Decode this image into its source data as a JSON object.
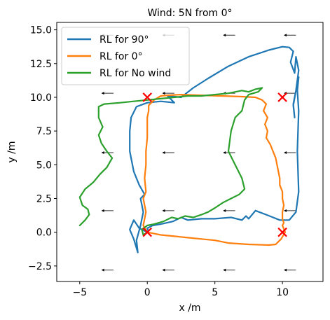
{
  "chart_data": {
    "type": "line",
    "title": "Wind: 5N from 0°",
    "xlabel": "x /m",
    "ylabel": "y /m",
    "xlim": [
      -6.7,
      13.0
    ],
    "ylim": [
      -3.65,
      15.55
    ],
    "xticks": [
      -5,
      0,
      5,
      10
    ],
    "xtick_labels": [
      "−5",
      "0",
      "5",
      "10"
    ],
    "yticks": [
      -2.5,
      0.0,
      2.5,
      5.0,
      7.5,
      10.0,
      12.5,
      15.0
    ],
    "ytick_labels": [
      "−2.5",
      "0.0",
      "2.5",
      "5.0",
      "7.5",
      "10.0",
      "12.5",
      "15.0"
    ],
    "grid": false,
    "legend_position": "upper-left",
    "series": [
      {
        "name": "RL for 90°",
        "color": "#1f77b4",
        "points": [
          [
            0,
            0
          ],
          [
            -0.6,
            0.3
          ],
          [
            -1.0,
            0.9
          ],
          [
            -1.3,
            0.2
          ],
          [
            -1.0,
            -0.5
          ],
          [
            -0.7,
            -1.5
          ],
          [
            -0.8,
            -0.6
          ],
          [
            -0.5,
            0.5
          ],
          [
            -0.3,
            1.5
          ],
          [
            -0.5,
            2.5
          ],
          [
            -0.2,
            2.8
          ],
          [
            -0.6,
            3.5
          ],
          [
            -1.0,
            4.5
          ],
          [
            -1.3,
            6.0
          ],
          [
            -1.3,
            7.5
          ],
          [
            -1.2,
            8.5
          ],
          [
            -0.8,
            9.3
          ],
          [
            0,
            9.6
          ],
          [
            1.0,
            9.7
          ],
          [
            2.0,
            9.6
          ],
          [
            1.5,
            10.1
          ],
          [
            2.5,
            10.0
          ],
          [
            3.4,
            10.7
          ],
          [
            4.5,
            11.4
          ],
          [
            6.0,
            12.3
          ],
          [
            7.5,
            13.0
          ],
          [
            9.0,
            13.5
          ],
          [
            10.0,
            13.75
          ],
          [
            10.5,
            13.7
          ],
          [
            10.8,
            13.4
          ],
          [
            10.6,
            12.6
          ],
          [
            10.9,
            11.8
          ],
          [
            11.0,
            13.0
          ],
          [
            11.2,
            12.0
          ],
          [
            11.0,
            10.5
          ],
          [
            10.8,
            9.4
          ],
          [
            10.9,
            8.5
          ],
          [
            10.8,
            9.5
          ],
          [
            11.0,
            10.5
          ],
          [
            11.2,
            11.5
          ],
          [
            11.1,
            10.5
          ],
          [
            11.2,
            9.0
          ],
          [
            11.1,
            6.0
          ],
          [
            11.2,
            3.0
          ],
          [
            11.0,
            1.5
          ],
          [
            10.5,
            0.9
          ],
          [
            9.8,
            0.9
          ],
          [
            8.8,
            1.3
          ],
          [
            8.0,
            1.6
          ],
          [
            7.5,
            1.0
          ],
          [
            7.3,
            1.2
          ],
          [
            7.0,
            0.9
          ],
          [
            6.2,
            1.1
          ],
          [
            5.0,
            1.0
          ],
          [
            4.0,
            1.0
          ],
          [
            3.0,
            0.9
          ],
          [
            2.5,
            1.1
          ],
          [
            1.9,
            0.8
          ],
          [
            1.0,
            0.6
          ],
          [
            0.4,
            0.5
          ],
          [
            0,
            0.3
          ],
          [
            0.1,
            0
          ],
          [
            0,
            0
          ]
        ]
      },
      {
        "name": "RL for 0°",
        "color": "#ff7f0e",
        "points": [
          [
            0,
            0
          ],
          [
            -0.3,
            0.5
          ],
          [
            -0.2,
            1.0
          ],
          [
            -0.1,
            1.5
          ],
          [
            -0.3,
            2.5
          ],
          [
            -0.1,
            3.0
          ],
          [
            -0.2,
            4.0
          ],
          [
            -0.1,
            5.0
          ],
          [
            -0.1,
            6.0
          ],
          [
            0,
            7.0
          ],
          [
            0,
            8.0
          ],
          [
            0,
            8.5
          ],
          [
            0.1,
            9.0
          ],
          [
            0.1,
            9.4
          ],
          [
            0.3,
            9.6
          ],
          [
            0.5,
            9.8
          ],
          [
            1.0,
            10.1
          ],
          [
            1.5,
            10.15
          ],
          [
            2.5,
            10.2
          ],
          [
            4.0,
            10.15
          ],
          [
            5.5,
            10.1
          ],
          [
            7.0,
            10.05
          ],
          [
            8.0,
            10.0
          ],
          [
            8.5,
            9.8
          ],
          [
            8.8,
            9.5
          ],
          [
            8.6,
            9.0
          ],
          [
            8.9,
            8.5
          ],
          [
            8.7,
            8.0
          ],
          [
            8.9,
            7.5
          ],
          [
            8.8,
            7.0
          ],
          [
            9.1,
            6.5
          ],
          [
            9.3,
            6.0
          ],
          [
            9.5,
            5.5
          ],
          [
            9.6,
            5.0
          ],
          [
            9.7,
            4.5
          ],
          [
            9.8,
            4.0
          ],
          [
            9.8,
            3.5
          ],
          [
            10.0,
            3.0
          ],
          [
            10.0,
            2.5
          ],
          [
            10.1,
            2.0
          ],
          [
            10.0,
            1.5
          ],
          [
            10.0,
            1.0
          ],
          [
            10.1,
            0.7
          ],
          [
            10.0,
            0.5
          ],
          [
            10.2,
            0
          ],
          [
            9.9,
            -0.5
          ],
          [
            9.5,
            -0.9
          ],
          [
            9.0,
            -0.95
          ],
          [
            7.5,
            -0.9
          ],
          [
            6.0,
            -0.8
          ],
          [
            5.0,
            -0.6
          ],
          [
            4.0,
            -0.5
          ],
          [
            3.0,
            -0.4
          ],
          [
            2.0,
            -0.3
          ],
          [
            1.0,
            -0.2
          ],
          [
            0.5,
            -0.1
          ],
          [
            0,
            0
          ]
        ]
      },
      {
        "name": "RL for No wind",
        "color": "#2ca02c",
        "points": [
          [
            -5.0,
            0.5
          ],
          [
            -4.6,
            0.9
          ],
          [
            -4.3,
            1.3
          ],
          [
            -4.4,
            1.7
          ],
          [
            -4.8,
            2.0
          ],
          [
            -5.0,
            2.6
          ],
          [
            -4.6,
            3.2
          ],
          [
            -4.0,
            3.7
          ],
          [
            -3.5,
            4.3
          ],
          [
            -3.0,
            4.8
          ],
          [
            -2.6,
            5.5
          ],
          [
            -3.0,
            6.0
          ],
          [
            -3.4,
            6.6
          ],
          [
            -3.6,
            7.2
          ],
          [
            -3.3,
            7.8
          ],
          [
            -3.6,
            8.5
          ],
          [
            -3.6,
            9.3
          ],
          [
            -3.2,
            9.5
          ],
          [
            -2.0,
            9.6
          ],
          [
            -1.0,
            9.7
          ],
          [
            0,
            9.8
          ],
          [
            1.0,
            9.9
          ],
          [
            2.0,
            10.0
          ],
          [
            3.0,
            10.1
          ],
          [
            4.0,
            10.1
          ],
          [
            5.0,
            10.2
          ],
          [
            6.0,
            10.3
          ],
          [
            7.0,
            10.5
          ],
          [
            7.5,
            10.4
          ],
          [
            8.0,
            10.6
          ],
          [
            8.5,
            10.7
          ],
          [
            8.2,
            10.4
          ],
          [
            7.5,
            10.2
          ],
          [
            7.2,
            9.8
          ],
          [
            7.0,
            9.0
          ],
          [
            6.5,
            8.5
          ],
          [
            6.2,
            7.5
          ],
          [
            6.0,
            6.0
          ],
          [
            6.5,
            5.0
          ],
          [
            7.0,
            4.0
          ],
          [
            7.2,
            3.2
          ],
          [
            6.8,
            2.8
          ],
          [
            6.2,
            2.5
          ],
          [
            5.6,
            2.2
          ],
          [
            5.0,
            1.8
          ],
          [
            4.5,
            1.5
          ],
          [
            4.0,
            1.3
          ],
          [
            3.4,
            1.1
          ],
          [
            2.8,
            1.2
          ],
          [
            2.3,
            1.0
          ],
          [
            1.8,
            1.1
          ],
          [
            1.2,
            0.8
          ],
          [
            0.5,
            0.6
          ],
          [
            0,
            0.5
          ],
          [
            -0.4,
            0.2
          ],
          [
            -0.3,
            -0.2
          ],
          [
            0,
            0
          ]
        ]
      }
    ],
    "markers": {
      "symbol": "x",
      "color": "#ff0000",
      "points": [
        [
          0,
          0
        ],
        [
          0,
          10
        ],
        [
          10,
          0
        ],
        [
          10,
          10
        ]
      ]
    },
    "wind_arrows": {
      "color": "#555555",
      "x": [
        -7,
        -2.5,
        2,
        6.5,
        11
      ],
      "y": [
        -2.8,
        1.6,
        5.9,
        10.3,
        14.6
      ],
      "dx": -0.9
    }
  }
}
